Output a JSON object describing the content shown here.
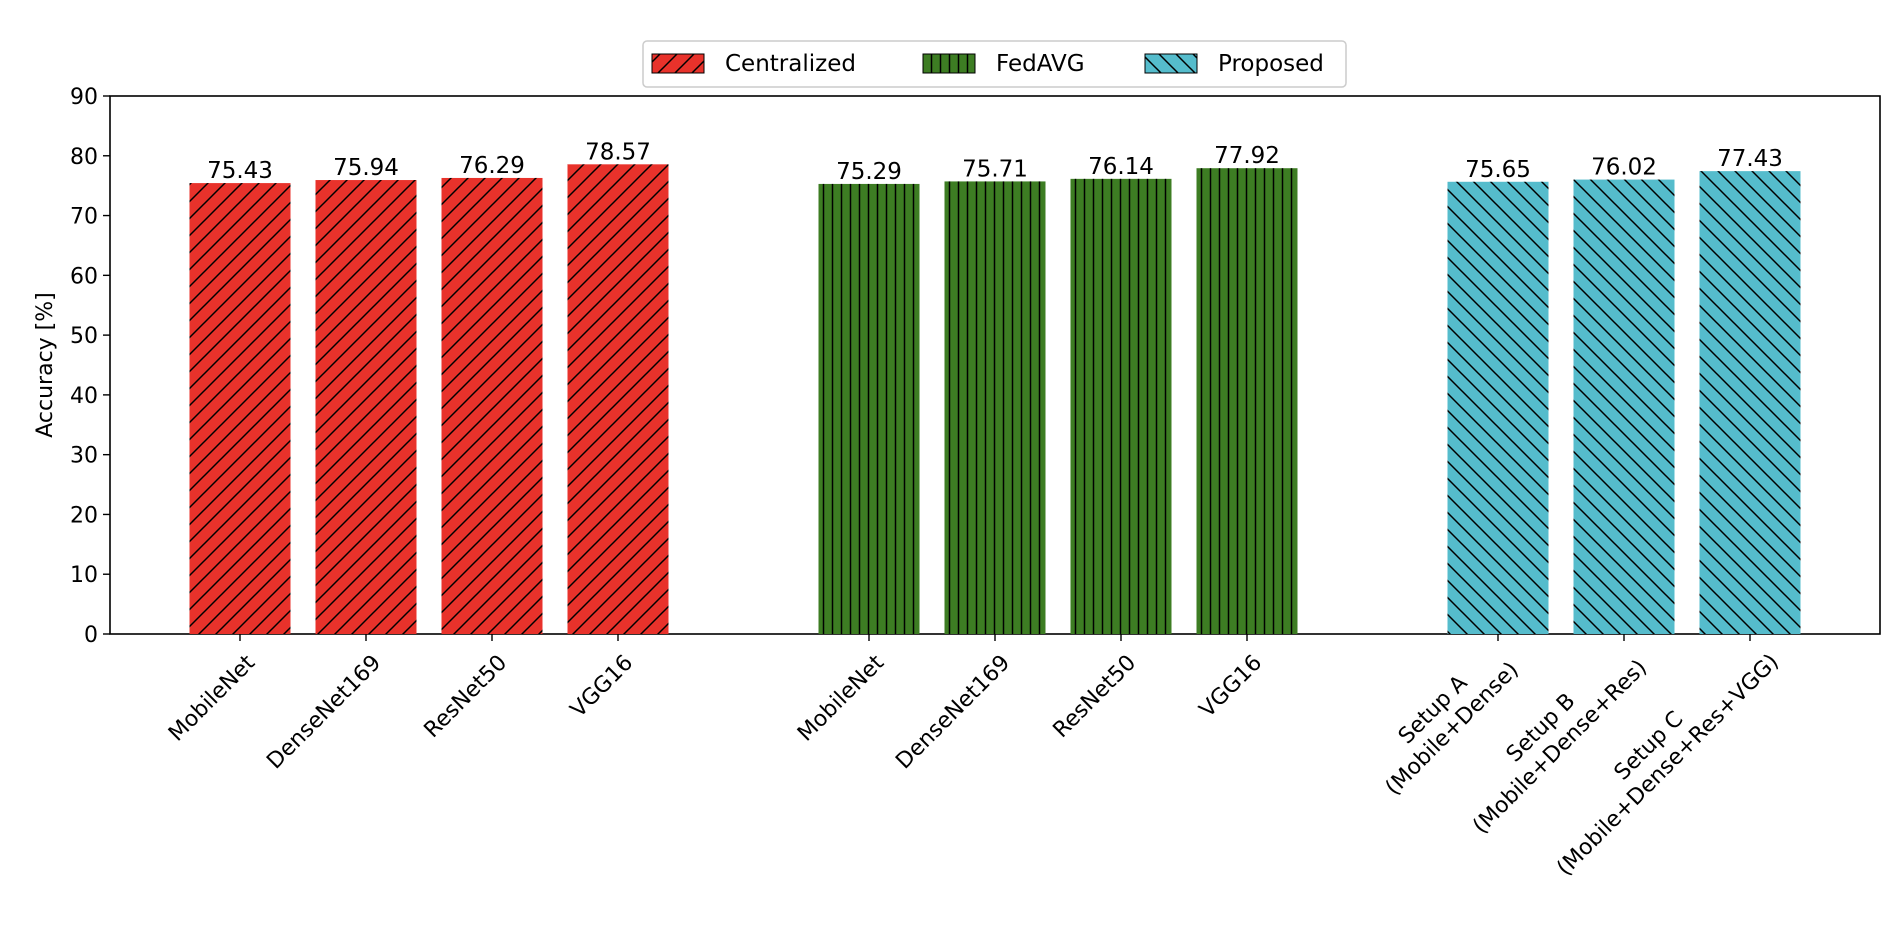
{
  "chart_data": {
    "type": "bar",
    "title": "",
    "xlabel": "",
    "ylabel": "Accuracy [%]",
    "ylim": [
      0,
      90
    ],
    "yticks": [
      0,
      10,
      20,
      30,
      40,
      50,
      60,
      70,
      80,
      90
    ],
    "grid": false,
    "legend": {
      "position": "top-center",
      "columns": 3
    },
    "groups": [
      {
        "name": "Centralized",
        "color": "#e8322b",
        "hatch": "forward-diagonal",
        "categories": [
          "MobileNet",
          "DenseNet169",
          "ResNet50",
          "VGG16"
        ],
        "values": [
          75.43,
          75.94,
          76.29,
          78.57
        ],
        "value_labels": [
          "75.43",
          "75.94",
          "76.29",
          "78.57"
        ]
      },
      {
        "name": "FedAVG",
        "color": "#3d7d23",
        "hatch": "vertical",
        "categories": [
          "MobileNet",
          "DenseNet169",
          "ResNet50",
          "VGG16"
        ],
        "values": [
          75.29,
          75.71,
          76.14,
          77.92
        ],
        "value_labels": [
          "75.29",
          "75.71",
          "76.14",
          "77.92"
        ]
      },
      {
        "name": "Proposed",
        "color": "#55bccc",
        "hatch": "back-diagonal",
        "categories": [
          [
            "Setup A",
            "(Mobile+Dense)"
          ],
          [
            "Setup B",
            "(Mobile+Dense+Res)"
          ],
          [
            "Setup C",
            "(Mobile+Dense+Res+VGG)"
          ]
        ],
        "values": [
          75.65,
          76.02,
          77.43
        ],
        "value_labels": [
          "75.65",
          "76.02",
          "77.43"
        ]
      }
    ]
  }
}
